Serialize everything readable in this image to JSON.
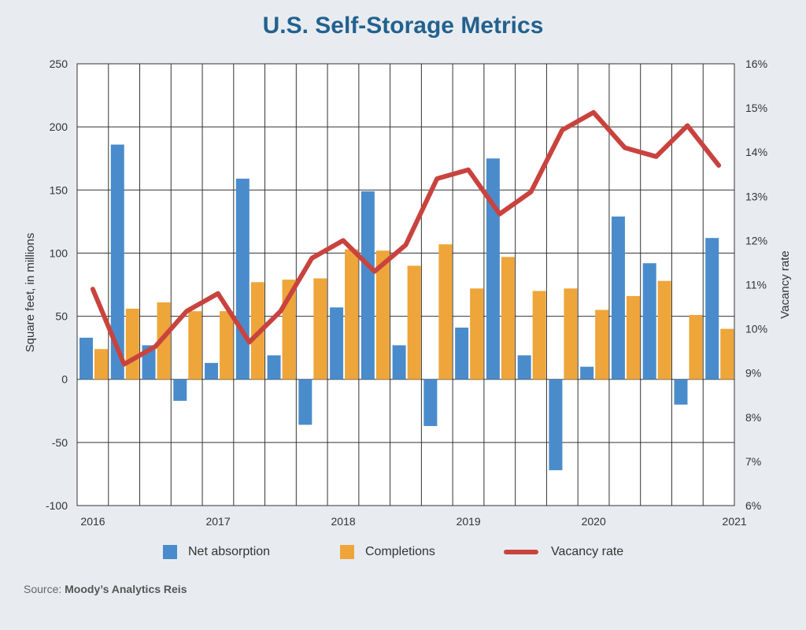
{
  "title": "U.S. Self-Storage Metrics",
  "legend": {
    "net_absorption": "Net absorption",
    "completions": "Completions",
    "vacancy_rate": "Vacancy rate"
  },
  "source": {
    "prefix": "Source:",
    "name": "Moody’s Analytics Reis"
  },
  "colors": {
    "net_absorption": "#4a8ccb",
    "completions": "#eea53a",
    "vacancy_rate": "#c9433e",
    "title": "#23618e"
  },
  "chart_data": {
    "type": "bar",
    "categories": [
      "2016 Q1",
      "2016 Q2",
      "2016 Q3",
      "2016 Q4",
      "2017 Q1",
      "2017 Q2",
      "2017 Q3",
      "2017 Q4",
      "2018 Q1",
      "2018 Q2",
      "2018 Q3",
      "2018 Q4",
      "2019 Q1",
      "2019 Q2",
      "2019 Q3",
      "2019 Q4",
      "2020 Q1",
      "2020 Q2",
      "2020 Q3",
      "2020 Q4",
      "2021 Q1"
    ],
    "x_tick_labels": [
      "2016",
      "2017",
      "2018",
      "2019",
      "2020",
      "2021"
    ],
    "series": [
      {
        "name": "Net absorption",
        "type": "bar",
        "axis": "left",
        "values": [
          33,
          186,
          27,
          -17,
          13,
          159,
          19,
          -36,
          57,
          149,
          27,
          -37,
          41,
          175,
          19,
          -72,
          10,
          129,
          92,
          -20,
          112
        ]
      },
      {
        "name": "Completions",
        "type": "bar",
        "axis": "left",
        "values": [
          24,
          56,
          61,
          54,
          54,
          77,
          79,
          80,
          103,
          102,
          90,
          107,
          72,
          97,
          70,
          72,
          55,
          66,
          78,
          51,
          40
        ]
      },
      {
        "name": "Vacancy rate",
        "type": "line",
        "axis": "right",
        "values": [
          10.9,
          9.2,
          9.6,
          10.4,
          10.8,
          9.7,
          10.4,
          11.6,
          12.0,
          11.3,
          11.9,
          13.4,
          13.6,
          12.6,
          13.1,
          14.5,
          14.9,
          14.1,
          13.9,
          14.6,
          13.7
        ]
      }
    ],
    "ylabel": "Square feet, in millions",
    "y2label": "Vacancy rate",
    "ylim": [
      -100,
      250
    ],
    "yticks": [
      -100,
      -50,
      0,
      50,
      100,
      150,
      200,
      250
    ],
    "y2lim": [
      6,
      16
    ],
    "y2ticks": [
      "6%",
      "7%",
      "8%",
      "9%",
      "10%",
      "11%",
      "12%",
      "13%",
      "14%",
      "15%",
      "16%"
    ],
    "grid": true,
    "legend_position": "bottom"
  }
}
